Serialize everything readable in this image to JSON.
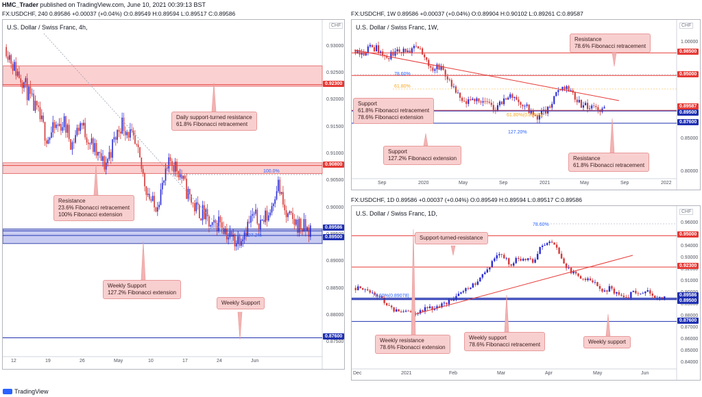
{
  "header": {
    "author": "HMC_Trader",
    "published": " published on TradingView.com, June 10, 2021 00:39:13 BST"
  },
  "panels": [
    {
      "id": "p4h",
      "symbol_line": "FX:USDCHF, 240  0.89586  +0.00037 (+0.04%)  O:0.89549  H:0.89594  L:0.89517  C:0.89586",
      "title": "U.S. Dollar / Swiss Franc, 4h,",
      "currency": "CHF",
      "y_ticks": [
        "0.93000",
        "0.92500",
        "0.92000",
        "0.91500",
        "0.91000",
        "0.90500",
        "0.90000",
        "0.89500",
        "0.89000",
        "0.88500",
        "0.88000",
        "0.87500"
      ],
      "x_ticks": [
        "12",
        "19",
        "26",
        "May",
        "10",
        "17",
        "24",
        "Jun"
      ],
      "badges": [
        {
          "text": "0.92300",
          "color": "#e53935"
        },
        {
          "text": "0.90800",
          "color": "#e53935"
        },
        {
          "text": "0.89586",
          "color": "#1e2fb0"
        },
        {
          "text": "0.89500",
          "color": "#1e2fb0"
        },
        {
          "text": "0.87600",
          "color": "#1e2fb0"
        }
      ],
      "fib_labels": [
        {
          "text": "100.0%",
          "color": "#2962ff"
        },
        {
          "text": "127.2%",
          "color": "#2962ff"
        }
      ],
      "callouts": [
        [
          "Daily support-turned resistance",
          "61.8% Fibonacci retracement"
        ],
        [
          "Resistance",
          "23.6% Fibonacci retracement",
          "100% Fibonacci extension"
        ],
        [
          "Weekly Support",
          "127.2% Fibonacci extension"
        ],
        [
          "Weekly Support"
        ]
      ]
    },
    {
      "id": "p1w",
      "symbol_line": "FX:USDCHF, 1W  0.89586  +0.00037 (+0.04%)  O:0.89904  H:0.90102  L:0.89261  C:0.89587",
      "title": "U.S. Dollar / Swiss Franc, 1W,",
      "currency": "CHF",
      "y_ticks": [
        "1.00000",
        "0.95000",
        "0.90000",
        "0.85000",
        "0.80000"
      ],
      "x_ticks": [
        "Sep",
        "2020",
        "May",
        "Sep",
        "2021",
        "May",
        "Sep",
        "2022"
      ],
      "badges": [
        {
          "text": "0.98500",
          "color": "#e53935"
        },
        {
          "text": "0.95000",
          "color": "#e53935"
        },
        {
          "text": "0.89587",
          "color": "#e53935"
        },
        {
          "text": "0.89500",
          "color": "#1e2fb0"
        },
        {
          "text": "0.87600",
          "color": "#1e2fb0"
        }
      ],
      "fib_labels": [
        {
          "text": "78.60%",
          "color": "#2962ff"
        },
        {
          "text": "61.80%",
          "color": "#f9a825"
        },
        {
          "text": "61.80%(0.89500)",
          "color": "#f9a825"
        },
        {
          "text": "127.20%",
          "color": "#2962ff"
        }
      ],
      "callouts": [
        [
          "Resistance",
          "78.6% Fibonacci retracement"
        ],
        [
          "Support",
          "61.8% Fibonacci retracement",
          "78.6% Fibonacci extension"
        ],
        [
          "Support",
          "127.2% Fibonacci extension"
        ],
        [
          "Resistance",
          "61.8% Fibonacci retracement"
        ]
      ]
    },
    {
      "id": "p1d",
      "symbol_line": "FX:USDCHF, 1D  0.89586  +0.00037 (+0.04%)  O:0.89549  H:0.89594  L:0.89517  C:0.89586",
      "title": "U.S. Dollar / Swiss Franc, 1D,",
      "currency": "CHF",
      "y_ticks": [
        "0.96000",
        "0.95000",
        "0.94000",
        "0.93000",
        "0.92000",
        "0.91000",
        "0.90000",
        "0.89000",
        "0.88000",
        "0.87000",
        "0.86000",
        "0.85000",
        "0.84000"
      ],
      "x_ticks": [
        "Dec",
        "2021",
        "Feb",
        "Mar",
        "Apr",
        "May",
        "Jun"
      ],
      "badges": [
        {
          "text": "0.95000",
          "color": "#e53935"
        },
        {
          "text": "0.92300",
          "color": "#e53935"
        },
        {
          "text": "0.89586",
          "color": "#1e2fb0"
        },
        {
          "text": "0.89500",
          "color": "#1e2fb0"
        },
        {
          "text": "0.87600",
          "color": "#1e2fb0"
        }
      ],
      "fib_labels": [
        {
          "text": "78.60%",
          "color": "#2962ff"
        },
        {
          "text": "78.60%(0.89078)",
          "color": "#2962ff"
        }
      ],
      "callouts": [
        [
          "Support-turned-resistance"
        ],
        [
          "Weekly resistance",
          "78.6% Fibonacci extension"
        ],
        [
          "Weekly support",
          "78.6% Fibonacci retracement"
        ],
        [
          "Weekly support"
        ]
      ]
    }
  ],
  "footer": {
    "brand": "TradingView"
  },
  "chart_data": [
    {
      "type": "candlestick",
      "title": "U.S. Dollar / Swiss Franc, 4h,",
      "ylim": [
        0.8725,
        0.9325
      ],
      "levels": [
        0.923,
        0.908,
        0.89586,
        0.895,
        0.876
      ],
      "zones": [
        [
          0.9227,
          0.9265
        ],
        [
          0.9065,
          0.9085
        ],
        [
          0.8935,
          0.8962
        ]
      ],
      "close_path": [
        0.93,
        0.926,
        0.924,
        0.92,
        0.917,
        0.913,
        0.915,
        0.916,
        0.912,
        0.916,
        0.913,
        0.91,
        0.908,
        0.912,
        0.916,
        0.914,
        0.91,
        0.904,
        0.9,
        0.904,
        0.909,
        0.907,
        0.903,
        0.9,
        0.899,
        0.896,
        0.898,
        0.895,
        0.894,
        0.896,
        0.8985,
        0.8975,
        0.899,
        0.905,
        0.8985,
        0.8975,
        0.8965,
        0.8958
      ]
    },
    {
      "type": "candlestick",
      "title": "U.S. Dollar / Swiss Franc, 1W,",
      "ylim": [
        0.79,
        1.015
      ],
      "levels": [
        0.985,
        0.95,
        0.89587,
        0.895,
        0.876
      ],
      "close_path": [
        0.99,
        0.985,
        0.995,
        0.99,
        0.975,
        0.985,
        0.99,
        0.985,
        0.995,
        0.975,
        0.96,
        0.965,
        0.94,
        0.92,
        0.905,
        0.91,
        0.915,
        0.905,
        0.9,
        0.91,
        0.92,
        0.91,
        0.9,
        0.885,
        0.89,
        0.9,
        0.925,
        0.935,
        0.92,
        0.905,
        0.9,
        0.898,
        0.896
      ]
    },
    {
      "type": "candlestick",
      "title": "U.S. Dollar / Swiss Franc, 1D,",
      "ylim": [
        0.835,
        0.965
      ],
      "levels": [
        0.95,
        0.923,
        0.89586,
        0.895,
        0.876
      ],
      "close_path": [
        0.905,
        0.903,
        0.902,
        0.898,
        0.89,
        0.886,
        0.885,
        0.883,
        0.884,
        0.887,
        0.887,
        0.89,
        0.893,
        0.897,
        0.903,
        0.906,
        0.912,
        0.921,
        0.93,
        0.934,
        0.925,
        0.93,
        0.931,
        0.928,
        0.94,
        0.944,
        0.94,
        0.925,
        0.918,
        0.915,
        0.912,
        0.909,
        0.902,
        0.905,
        0.899,
        0.897,
        0.901,
        0.899,
        0.902,
        0.896,
        0.8958
      ]
    }
  ]
}
